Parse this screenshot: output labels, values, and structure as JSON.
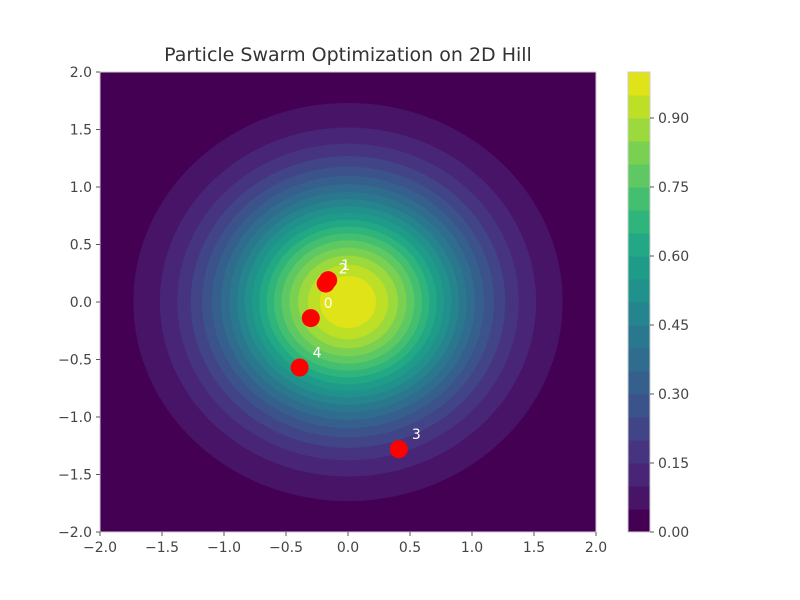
{
  "chart_data": {
    "type": "contourf",
    "title": "Particle Swarm Optimization on 2D Hill",
    "xlabel": "",
    "ylabel": "",
    "xlim": [
      -2.0,
      2.0
    ],
    "ylim": [
      -2.0,
      2.0
    ],
    "xticks": [
      "−2.0",
      "−1.5",
      "−1.0",
      "−0.5",
      "0.0",
      "0.5",
      "1.0",
      "1.5",
      "2.0"
    ],
    "yticks": [
      "−2.0",
      "−1.5",
      "−1.0",
      "−0.5",
      "0.0",
      "0.5",
      "1.0",
      "1.5",
      "2.0"
    ],
    "xtick_values": [
      -2.0,
      -1.5,
      -1.0,
      -0.5,
      0.0,
      0.5,
      1.0,
      1.5,
      2.0
    ],
    "ytick_values": [
      -2.0,
      -1.5,
      -1.0,
      -0.5,
      0.0,
      0.5,
      1.0,
      1.5,
      2.0
    ],
    "surface": "exp(-(x^2 + y^2))",
    "contour_levels": [
      0.0,
      0.05,
      0.1,
      0.15,
      0.2,
      0.25,
      0.3,
      0.35,
      0.4,
      0.45,
      0.5,
      0.55,
      0.6,
      0.65,
      0.7,
      0.75,
      0.8,
      0.85,
      0.9,
      0.95,
      1.0
    ],
    "level_colors": [
      "#440154",
      "#481467",
      "#482576",
      "#463480",
      "#414487",
      "#3b528b",
      "#355f8d",
      "#2f6c8e",
      "#2a788e",
      "#25848e",
      "#21918c",
      "#1e9c89",
      "#22a884",
      "#2fb47c",
      "#44bf70",
      "#5ec962",
      "#7ad151",
      "#9bd93c",
      "#bddf26",
      "#dfe318"
    ],
    "colorbar": {
      "ticks": [
        "0.00",
        "0.15",
        "0.30",
        "0.45",
        "0.60",
        "0.75",
        "0.90"
      ],
      "tick_values": [
        0.0,
        0.15,
        0.3,
        0.45,
        0.6,
        0.75,
        0.9
      ],
      "range": [
        0.0,
        1.0
      ]
    },
    "particles": [
      {
        "label": "0",
        "x": -0.3,
        "y": -0.14
      },
      {
        "label": "1",
        "x": -0.16,
        "y": 0.19
      },
      {
        "label": "2",
        "x": -0.18,
        "y": 0.16
      },
      {
        "label": "3",
        "x": 0.41,
        "y": -1.28
      },
      {
        "label": "4",
        "x": -0.39,
        "y": -0.57
      }
    ],
    "particle_color": "#ff0000",
    "grid": false
  }
}
